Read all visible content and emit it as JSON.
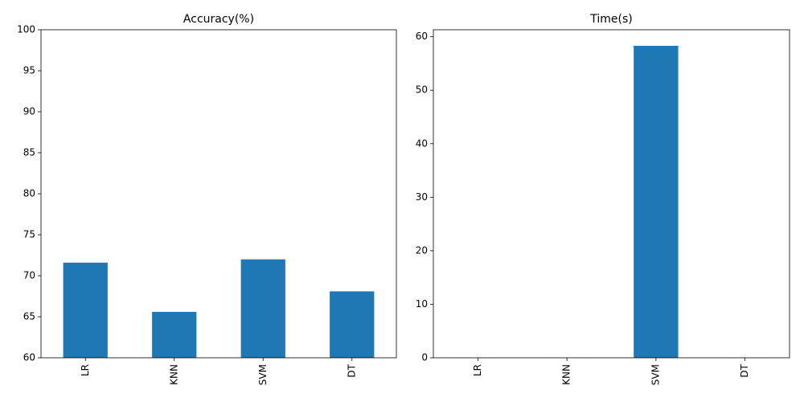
{
  "chart_data": [
    {
      "type": "bar",
      "title": "Accuracy(%)",
      "xlabel": "",
      "ylabel": "",
      "categories": [
        "LR",
        "KNN",
        "SVM",
        "DT"
      ],
      "values": [
        71.6,
        65.6,
        72.0,
        68.1
      ],
      "ylim": [
        60,
        100
      ],
      "yticks": [
        60,
        65,
        70,
        75,
        80,
        85,
        90,
        95,
        100
      ],
      "bar_color": "#1f77b4",
      "grid": false,
      "legend": "none"
    },
    {
      "type": "bar",
      "title": "Time(s)",
      "xlabel": "",
      "ylabel": "",
      "categories": [
        "LR",
        "KNN",
        "SVM",
        "DT"
      ],
      "values": [
        0.02,
        0.01,
        58.3,
        0.02
      ],
      "ylim": [
        0,
        61.3
      ],
      "yticks": [
        0,
        10,
        20,
        30,
        40,
        50,
        60
      ],
      "bar_color": "#1f77b4",
      "grid": false,
      "legend": "none"
    }
  ]
}
